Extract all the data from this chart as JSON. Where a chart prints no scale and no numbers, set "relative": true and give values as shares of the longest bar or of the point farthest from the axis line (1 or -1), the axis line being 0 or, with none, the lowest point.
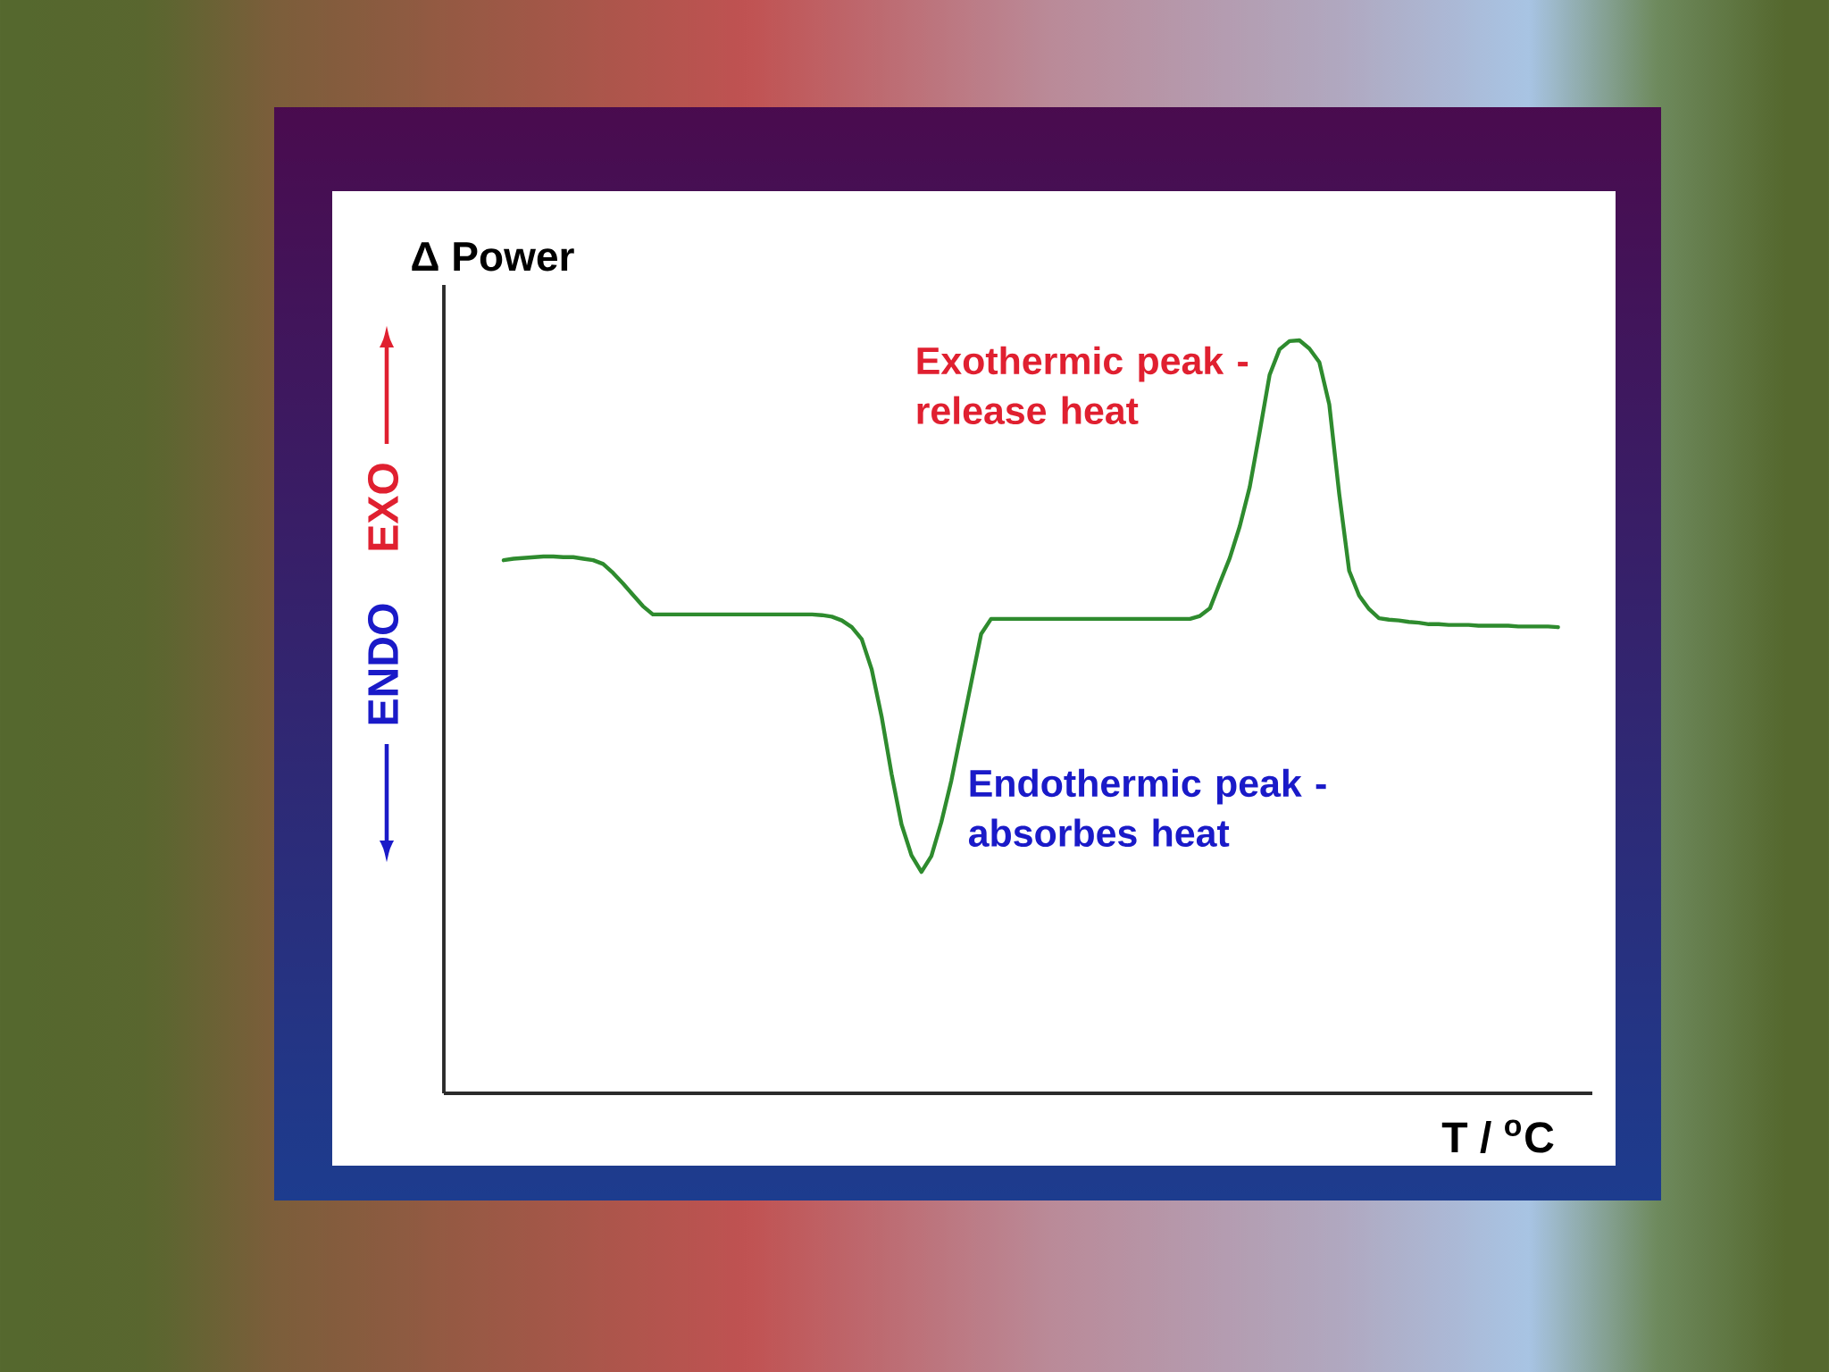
{
  "chart_data": {
    "type": "line",
    "relative": true,
    "xlabel": "T / $^{o}$C",
    "ylabel": "Δ Power",
    "annotations": [
      "EXO",
      "ENDO",
      "Exothermic peak - release heat",
      "Endothermic peak - absorbes heat"
    ],
    "color": "#2e8b2e",
    "categories": [
      null,
      null,
      null,
      null,
      null,
      null,
      null,
      null,
      null,
      null,
      null,
      null,
      null,
      null,
      null,
      null,
      null,
      null,
      null,
      null,
      null,
      null,
      null,
      null,
      null,
      null,
      null,
      null,
      null,
      null,
      null,
      null,
      null,
      null,
      null,
      null,
      null,
      null,
      null,
      null,
      null,
      null,
      null,
      null,
      null,
      null,
      null,
      null,
      null,
      null,
      null,
      null,
      null,
      null,
      null,
      null,
      null,
      null,
      null,
      null,
      null,
      null,
      null,
      null,
      null,
      null,
      null,
      null,
      null,
      null,
      null,
      null,
      null,
      null,
      null,
      null,
      null,
      null,
      null,
      null,
      null,
      null,
      null,
      null,
      null,
      null,
      null,
      null,
      null,
      null,
      null,
      null,
      null,
      null,
      null,
      null,
      null,
      null,
      null,
      null,
      null,
      null,
      null,
      null,
      null,
      null,
      null
    ],
    "values": [
      0.708,
      0.71,
      0.711,
      0.712,
      0.713,
      0.713,
      0.712,
      0.712,
      0.71,
      0.708,
      0.703,
      0.691,
      0.677,
      0.662,
      0.647,
      0.636,
      0.636,
      0.636,
      0.636,
      0.636,
      0.636,
      0.636,
      0.636,
      0.636,
      0.636,
      0.636,
      0.636,
      0.636,
      0.636,
      0.636,
      0.636,
      0.636,
      0.635,
      0.633,
      0.628,
      0.619,
      0.603,
      0.563,
      0.5,
      0.424,
      0.357,
      0.316,
      0.294,
      0.315,
      0.36,
      0.415,
      0.48,
      0.545,
      0.61,
      0.63,
      0.63,
      0.63,
      0.63,
      0.63,
      0.63,
      0.63,
      0.63,
      0.63,
      0.63,
      0.63,
      0.63,
      0.63,
      0.63,
      0.63,
      0.63,
      0.63,
      0.63,
      0.63,
      0.63,
      0.63,
      0.634,
      0.644,
      0.678,
      0.711,
      0.753,
      0.805,
      0.878,
      0.954,
      0.988,
      0.999,
      1,
      0.989,
      0.971,
      0.915,
      0.796,
      0.694,
      0.661,
      0.643,
      0.631,
      0.629,
      0.628,
      0.626,
      0.625,
      0.623,
      0.623,
      0.622,
      0.622,
      0.622,
      0.621,
      0.621,
      0.621,
      0.621,
      0.62,
      0.62,
      0.62,
      0.62,
      0.619
    ]
  }
}
